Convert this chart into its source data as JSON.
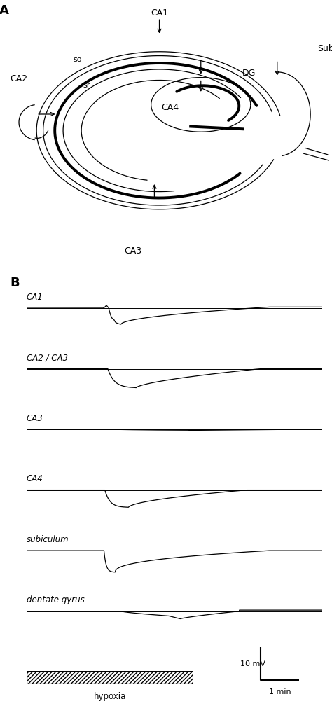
{
  "figure_width": 4.74,
  "figure_height": 10.08,
  "bg_color": "#ffffff",
  "panel_A_label": "A",
  "panel_B_label": "B",
  "trace_labels": [
    "CA1",
    "CA2 / CA3",
    "CA3",
    "CA4",
    "subiculum",
    "dentate gyrus"
  ],
  "scale_bar_mV": "10 mV",
  "scale_bar_time": "1 min",
  "hypoxia_label": "hypoxia",
  "lw_thin": 0.9,
  "lw_thick": 2.8,
  "lw_trace": 0.9
}
